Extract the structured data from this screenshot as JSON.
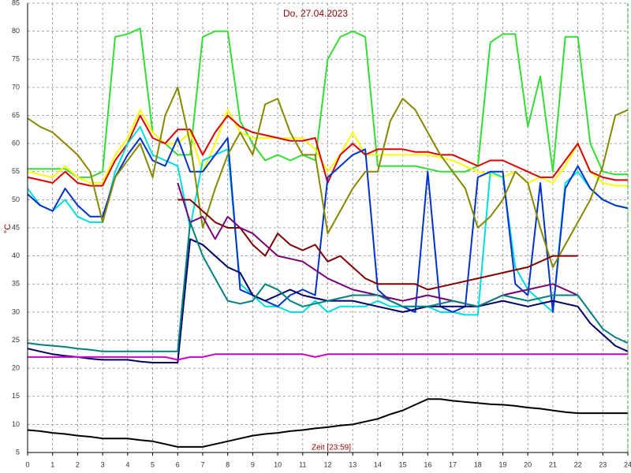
{
  "chart_data": {
    "type": "line",
    "title": "Do, 27.04.2023",
    "x_label": "Zeit [23:59]",
    "y_label": "°C",
    "xlim": [
      0,
      24
    ],
    "ylim": [
      5,
      85
    ],
    "xticks": [
      0,
      1,
      2,
      3,
      4,
      5,
      6,
      7,
      8,
      9,
      10,
      11,
      12,
      13,
      14,
      15,
      16,
      17,
      18,
      19,
      20,
      21,
      22,
      23,
      24
    ],
    "yticks": [
      5,
      10,
      15,
      20,
      25,
      30,
      35,
      40,
      45,
      50,
      55,
      60,
      65,
      70,
      75,
      80,
      85
    ],
    "grid": true,
    "x": [
      0,
      0.5,
      1,
      1.5,
      2,
      2.5,
      3,
      3.5,
      4,
      4.5,
      5,
      5.5,
      6,
      6.5,
      7,
      7.5,
      8,
      8.5,
      9,
      9.5,
      10,
      10.5,
      11,
      11.5,
      12,
      12.5,
      13,
      13.5,
      14,
      14.5,
      15,
      15.5,
      16,
      16.5,
      17,
      17.5,
      18,
      18.5,
      19,
      19.5,
      20,
      20.5,
      21,
      21.5,
      22,
      22.5,
      23,
      23.5,
      24
    ],
    "series": [
      {
        "color": "#33dd33",
        "values": [
          55.5,
          55.5,
          55.5,
          55.5,
          54,
          54,
          55,
          79,
          79.5,
          80.5,
          62,
          60,
          58,
          58,
          79,
          80,
          80,
          64,
          60,
          57,
          58,
          57,
          58,
          57,
          75,
          79,
          80,
          79,
          56,
          56,
          56,
          56,
          55.5,
          55,
          55,
          55,
          56,
          78,
          79.5,
          79.5,
          63,
          72,
          55,
          79,
          79,
          60,
          55,
          54.5,
          54.5
        ]
      },
      {
        "color": "#ffff00",
        "values": [
          55,
          54.5,
          54,
          56,
          54,
          53,
          53,
          58,
          61,
          66,
          62,
          60,
          60,
          62,
          55,
          60,
          66,
          62,
          61,
          61,
          61,
          61,
          61,
          59,
          55,
          58,
          62,
          58,
          58,
          58,
          58,
          58,
          58,
          57.5,
          57,
          56,
          55,
          54.5,
          54,
          55,
          53,
          54,
          53,
          56,
          60,
          55,
          53,
          52.5,
          52.5
        ]
      },
      {
        "color": "#dd0000",
        "values": [
          54,
          53.5,
          53,
          55,
          53,
          52.5,
          52.5,
          57,
          60,
          65,
          61,
          60,
          62.5,
          62.5,
          58,
          62,
          65,
          63,
          62,
          61.5,
          61,
          60.5,
          60.5,
          61,
          53,
          58,
          60,
          58,
          59,
          59,
          59,
          58.5,
          58.5,
          58,
          58,
          57,
          56,
          57,
          57,
          56,
          55,
          54,
          54,
          57,
          60,
          55,
          54,
          53.5,
          53.5
        ]
      },
      {
        "color": "#00dddd",
        "values": [
          52,
          49,
          48,
          50,
          47,
          46,
          46,
          55,
          60,
          63,
          58,
          57,
          56,
          45,
          57,
          58,
          59,
          35,
          33,
          31,
          31,
          30,
          30,
          32,
          30,
          31,
          31,
          31,
          32,
          31,
          31,
          31,
          31,
          30,
          30,
          29.5,
          29.5,
          55,
          54,
          38,
          34,
          32,
          30,
          53,
          55,
          52,
          50,
          49,
          48.5
        ]
      },
      {
        "color": "#0033cc",
        "values": [
          51,
          49,
          48,
          52,
          49,
          47,
          47,
          54,
          58,
          61,
          57,
          56,
          61,
          55,
          55,
          58,
          61,
          34,
          33,
          32,
          31,
          33,
          34,
          33,
          54,
          56,
          58,
          59,
          34,
          32,
          31,
          30,
          55,
          31,
          30,
          31,
          54,
          55,
          55,
          35,
          33,
          53,
          30,
          52,
          56,
          52,
          50,
          49,
          48.5
        ]
      },
      {
        "color": "#888800",
        "values": [
          64.5,
          63,
          62,
          60,
          58,
          55,
          46,
          54,
          57,
          60,
          54,
          65,
          70,
          60,
          45,
          52,
          58,
          62,
          58,
          67,
          68,
          62,
          58,
          58,
          44,
          48,
          52,
          55,
          55,
          64,
          68,
          66,
          62,
          58,
          55,
          52,
          45,
          47,
          50,
          55,
          53,
          45,
          38,
          42,
          46,
          50,
          56,
          65,
          66
        ]
      },
      {
        "color": "#800000",
        "values": [
          null,
          null,
          null,
          null,
          null,
          null,
          null,
          null,
          null,
          null,
          null,
          null,
          50,
          50,
          48,
          46,
          45,
          45,
          42,
          40,
          44,
          42,
          41,
          42,
          39,
          40,
          38,
          36,
          35,
          35,
          35,
          35,
          34,
          34.5,
          35,
          35.5,
          36,
          36.5,
          37,
          37.5,
          38,
          39,
          40,
          40,
          40,
          null,
          null,
          null,
          null
        ]
      },
      {
        "color": "#770077",
        "values": [
          null,
          null,
          null,
          null,
          null,
          null,
          null,
          null,
          null,
          null,
          null,
          null,
          53,
          46,
          47,
          43,
          47,
          45,
          44,
          42,
          40,
          39.5,
          39,
          37.5,
          36,
          35,
          34,
          33.5,
          33,
          32.5,
          32,
          32.5,
          33,
          32.5,
          32,
          31.5,
          31,
          32,
          33,
          33.5,
          34,
          34.5,
          35,
          34,
          33,
          null,
          null,
          null,
          null
        ]
      },
      {
        "color": "#000066",
        "values": [
          23.5,
          23,
          22.5,
          22.2,
          22,
          21.7,
          21.5,
          21.5,
          21.5,
          21.2,
          21,
          21,
          21,
          43,
          42,
          40,
          38,
          37,
          33,
          32,
          33,
          34,
          33,
          32.5,
          32,
          32,
          32,
          31.5,
          31,
          30.5,
          30,
          30.5,
          31,
          31,
          31,
          31,
          31,
          31.5,
          32,
          31.5,
          31,
          31.5,
          32,
          31.5,
          31,
          28,
          26,
          24,
          23
        ]
      },
      {
        "color": "#008080",
        "values": [
          24.5,
          24.2,
          24,
          23.8,
          23.5,
          23.3,
          23,
          23,
          23,
          23,
          23,
          23,
          23,
          46,
          40,
          36,
          32,
          31.5,
          32,
          35,
          34,
          32,
          31,
          31.5,
          32,
          32.5,
          33,
          33,
          33,
          32,
          31,
          31,
          31,
          31.5,
          32,
          31.5,
          31,
          32,
          33,
          32.5,
          32,
          32.5,
          33,
          33,
          33,
          30,
          27,
          25.5,
          24.5
        ]
      },
      {
        "color": "#cc00cc",
        "values": [
          22,
          22,
          22,
          22,
          22,
          22,
          22,
          22,
          22,
          22,
          22,
          22,
          21.5,
          22,
          22,
          22.5,
          22.5,
          22.5,
          22.5,
          22.5,
          22.5,
          22.5,
          22.5,
          22,
          22.5,
          22.5,
          22.5,
          22.5,
          22.5,
          22.5,
          22.5,
          22.5,
          22.5,
          22.5,
          22.5,
          22.5,
          22.5,
          22.5,
          22.5,
          22.5,
          22.5,
          22.5,
          22.5,
          22.5,
          22.5,
          22.5,
          22.5,
          22.5,
          22.5
        ]
      },
      {
        "color": "#000000",
        "values": [
          9,
          8.8,
          8.5,
          8.3,
          8,
          7.8,
          7.5,
          7.5,
          7.5,
          7.2,
          7,
          6.5,
          6,
          6,
          6,
          6.5,
          7,
          7.5,
          8,
          8.3,
          8.5,
          8.8,
          9,
          9.3,
          9.5,
          9.8,
          10,
          10.5,
          11,
          11.8,
          12.5,
          13.5,
          14.5,
          14.5,
          14.2,
          14,
          13.8,
          13.6,
          13.5,
          13.3,
          13,
          12.8,
          12.5,
          12.2,
          12,
          12,
          12,
          12,
          12
        ]
      }
    ]
  }
}
